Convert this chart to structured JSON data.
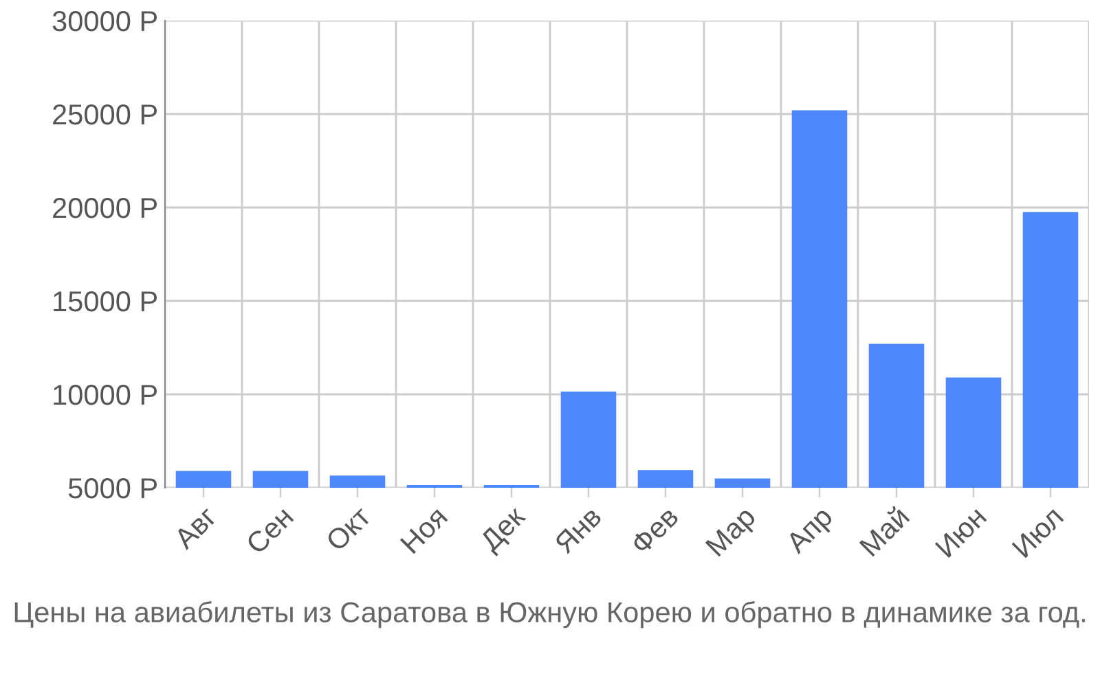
{
  "chart_data": {
    "type": "bar",
    "categories": [
      "Авг",
      "Сен",
      "Окт",
      "Ноя",
      "Дек",
      "Янв",
      "Фев",
      "Мар",
      "Апр",
      "Май",
      "Июн",
      "Июл"
    ],
    "values": [
      5900,
      5900,
      5650,
      5150,
      5150,
      10150,
      5950,
      5500,
      25200,
      12700,
      10900,
      19750
    ],
    "color": "#4d88fb",
    "ylim": [
      5000,
      30000
    ],
    "yticks": [
      {
        "value": 5000,
        "label": "5000 Р"
      },
      {
        "value": 10000,
        "label": "10000 Р"
      },
      {
        "value": 15000,
        "label": "15000 Р"
      },
      {
        "value": 20000,
        "label": "20000 Р"
      },
      {
        "value": 25000,
        "label": "25000 Р"
      },
      {
        "value": 30000,
        "label": "30000 Р"
      }
    ],
    "grid": true,
    "annotations": [
      "Цены на авиабилеты из Саратова в Южную Корею и обратно в динамике за год."
    ]
  }
}
